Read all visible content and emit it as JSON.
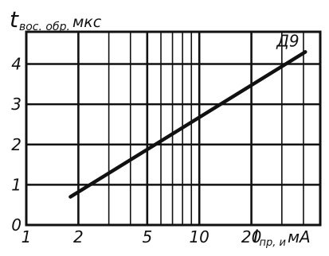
{
  "chart_data": {
    "type": "line",
    "x_scale": "log",
    "y_axis_label": "t",
    "y_axis_label_sub": "вос. обр.",
    "y_axis_unit": "мкс",
    "x_axis_label": "I",
    "x_axis_label_sub": "пр, и",
    "x_axis_unit": "мА",
    "x_ticks": [
      {
        "value": 1,
        "label": "1"
      },
      {
        "value": 2,
        "label": "2"
      },
      {
        "value": 5,
        "label": "5"
      },
      {
        "value": 10,
        "label": "10"
      },
      {
        "value": 20,
        "label": "20"
      }
    ],
    "y_ticks": [
      {
        "value": 0,
        "label": "0"
      },
      {
        "value": 1,
        "label": "1"
      },
      {
        "value": 2,
        "label": "2"
      },
      {
        "value": 3,
        "label": "3"
      },
      {
        "value": 4,
        "label": "4"
      }
    ],
    "x_range": [
      1,
      50
    ],
    "y_range": [
      0,
      4.8
    ],
    "grid": true,
    "series": [
      {
        "name": "Д9",
        "x": [
          1.8,
          41
        ],
        "y": [
          0.7,
          4.3
        ]
      }
    ]
  }
}
